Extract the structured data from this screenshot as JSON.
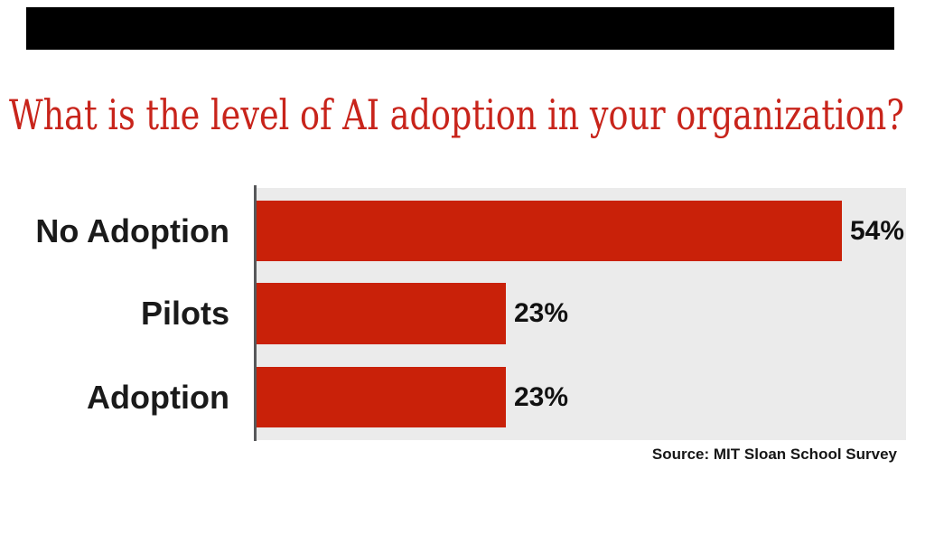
{
  "top_bar": {
    "color": "#000000"
  },
  "title": {
    "text": "What is the level of AI adoption in your organization?",
    "color": "#c8241b"
  },
  "chart_data": {
    "type": "bar",
    "orientation": "horizontal",
    "title": "What is the level of AI adoption in your organization?",
    "categories": [
      "No Adoption",
      "Pilots",
      "Adoption"
    ],
    "values": [
      54,
      23,
      23
    ],
    "value_labels": [
      "54%",
      "23%",
      "23%"
    ],
    "xlim": [
      0,
      60
    ],
    "grid": false,
    "legend": false,
    "bar_color": "#c92109",
    "plot_background": "#ebebeb",
    "axis_color": "#57585a",
    "source": "Source: MIT Sloan School Survey"
  },
  "source": {
    "text": "Source: MIT Sloan School Survey"
  }
}
